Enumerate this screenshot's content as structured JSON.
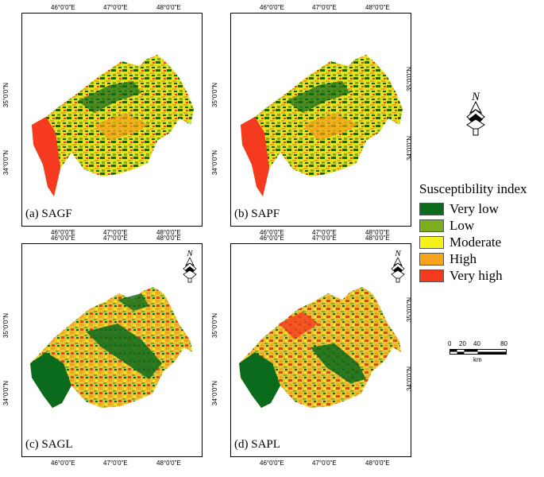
{
  "panels": [
    {
      "id": "a",
      "label": "(a) SAGF"
    },
    {
      "id": "b",
      "label": "(b) SAPF"
    },
    {
      "id": "c",
      "label": "(c) SAGL"
    },
    {
      "id": "d",
      "label": "(d) SAPL"
    }
  ],
  "axes": {
    "longitude_ticks": [
      "46°0'0\"E",
      "47°0'0\"E",
      "48°0'0\"E"
    ],
    "latitude_ticks": [
      "35°0'0\"N",
      "34°0'0\"N"
    ]
  },
  "legend": {
    "title": "Susceptibility index",
    "classes": [
      {
        "label": "Very low",
        "color": "#0b6b1c"
      },
      {
        "label": "Low",
        "color": "#7aae1e"
      },
      {
        "label": "Moderate",
        "color": "#f4f21a"
      },
      {
        "label": "High",
        "color": "#f7a21a"
      },
      {
        "label": "Very high",
        "color": "#f53a1f"
      }
    ]
  },
  "north_arrow": {
    "letter": "N",
    "icon": "north-arrow-icon"
  },
  "scale_bar": {
    "ticks": [
      "0",
      "20",
      "40",
      "80"
    ],
    "unit": "km"
  }
}
